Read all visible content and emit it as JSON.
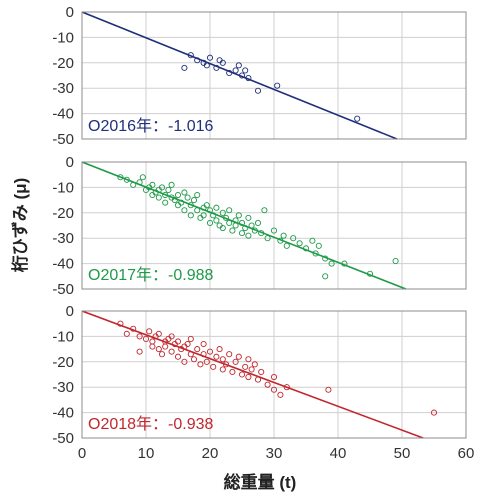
{
  "chart_data": {
    "type": "scatter",
    "xlabel": "総重量 (t)",
    "ylabel": "桁ひずみ (μ)",
    "xlim": [
      0,
      60
    ],
    "ylim": [
      -50,
      0
    ],
    "x_ticks": [
      "0",
      "10",
      "20",
      "30",
      "40",
      "50",
      "60"
    ],
    "y_ticks": [
      "0",
      "-10",
      "-20",
      "-30",
      "-40",
      "-50"
    ],
    "grid": true,
    "panels": [
      {
        "name": "2016",
        "label": "O2016年：-1.016",
        "color": "#1f2f7a",
        "slope": -1.016,
        "points": [
          [
            16,
            -22
          ],
          [
            17,
            -17
          ],
          [
            18,
            -19
          ],
          [
            19,
            -20
          ],
          [
            19.5,
            -21
          ],
          [
            20,
            -18
          ],
          [
            21,
            -22
          ],
          [
            21.5,
            -19
          ],
          [
            22,
            -20
          ],
          [
            23,
            -24
          ],
          [
            24,
            -23
          ],
          [
            24.5,
            -21
          ],
          [
            25,
            -25
          ],
          [
            25.5,
            -23
          ],
          [
            26,
            -26
          ],
          [
            27.5,
            -31
          ],
          [
            30.5,
            -29
          ],
          [
            43,
            -42
          ]
        ]
      },
      {
        "name": "2017",
        "label": "O2017年：-0.988",
        "color": "#1e9a48",
        "slope": -0.988,
        "points": [
          [
            6,
            -6
          ],
          [
            7,
            -7
          ],
          [
            8,
            -9
          ],
          [
            9,
            -8
          ],
          [
            9.5,
            -6
          ],
          [
            10,
            -11
          ],
          [
            10.5,
            -10
          ],
          [
            11,
            -13
          ],
          [
            11,
            -9
          ],
          [
            11.5,
            -12
          ],
          [
            12,
            -11
          ],
          [
            12,
            -14
          ],
          [
            12.5,
            -10
          ],
          [
            13,
            -13
          ],
          [
            13,
            -16
          ],
          [
            13.5,
            -11
          ],
          [
            14,
            -14
          ],
          [
            14,
            -9
          ],
          [
            14.5,
            -15
          ],
          [
            15,
            -13
          ],
          [
            15,
            -17
          ],
          [
            15.5,
            -16
          ],
          [
            16,
            -12
          ],
          [
            16,
            -19
          ],
          [
            16.5,
            -14
          ],
          [
            17,
            -17
          ],
          [
            17,
            -21
          ],
          [
            17.5,
            -15
          ],
          [
            18,
            -19
          ],
          [
            18,
            -13
          ],
          [
            18.5,
            -22
          ],
          [
            19,
            -18
          ],
          [
            19,
            -21
          ],
          [
            19.5,
            -17
          ],
          [
            20,
            -24
          ],
          [
            20,
            -19
          ],
          [
            20.5,
            -21
          ],
          [
            21,
            -18
          ],
          [
            21,
            -23
          ],
          [
            21.5,
            -25
          ],
          [
            22,
            -20
          ],
          [
            22,
            -26
          ],
          [
            22.5,
            -22
          ],
          [
            23,
            -24
          ],
          [
            23,
            -19
          ],
          [
            23.5,
            -27
          ],
          [
            24,
            -23
          ],
          [
            24,
            -25
          ],
          [
            24.5,
            -21
          ],
          [
            25,
            -28
          ],
          [
            25,
            -24
          ],
          [
            25.5,
            -26
          ],
          [
            26,
            -22
          ],
          [
            26,
            -29
          ],
          [
            26.5,
            -25
          ],
          [
            27,
            -27
          ],
          [
            27.5,
            -24
          ],
          [
            28,
            -28
          ],
          [
            28.5,
            -19
          ],
          [
            29,
            -30
          ],
          [
            30,
            -27
          ],
          [
            31,
            -31
          ],
          [
            31.5,
            -29
          ],
          [
            32,
            -33
          ],
          [
            33,
            -30
          ],
          [
            34,
            -32
          ],
          [
            35,
            -34
          ],
          [
            36,
            -31
          ],
          [
            36.5,
            -36
          ],
          [
            37,
            -33
          ],
          [
            38,
            -45
          ],
          [
            38,
            -38
          ],
          [
            39,
            -40
          ],
          [
            41,
            -40
          ],
          [
            45,
            -44
          ],
          [
            49,
            -39
          ]
        ]
      },
      {
        "name": "2018",
        "label": "O2018年：-0.938",
        "color": "#c1272d",
        "slope": -0.938,
        "points": [
          [
            6,
            -5
          ],
          [
            7,
            -9
          ],
          [
            8,
            -7
          ],
          [
            9,
            -10
          ],
          [
            9,
            -16
          ],
          [
            10,
            -11
          ],
          [
            10.5,
            -8
          ],
          [
            11,
            -14
          ],
          [
            11,
            -12
          ],
          [
            11.5,
            -10
          ],
          [
            12,
            -15
          ],
          [
            12,
            -9
          ],
          [
            12.5,
            -17
          ],
          [
            13,
            -12
          ],
          [
            13,
            -14
          ],
          [
            13.5,
            -11
          ],
          [
            14,
            -16
          ],
          [
            14,
            -10
          ],
          [
            14.5,
            -13
          ],
          [
            15,
            -18
          ],
          [
            15,
            -12
          ],
          [
            15.5,
            -15
          ],
          [
            16,
            -14
          ],
          [
            16,
            -20
          ],
          [
            16.5,
            -13
          ],
          [
            17,
            -17
          ],
          [
            17,
            -11
          ],
          [
            17.5,
            -19
          ],
          [
            18,
            -15
          ],
          [
            18.5,
            -21
          ],
          [
            19,
            -17
          ],
          [
            19,
            -13
          ],
          [
            19.5,
            -20
          ],
          [
            20,
            -16
          ],
          [
            20.5,
            -22
          ],
          [
            21,
            -18
          ],
          [
            21.5,
            -15
          ],
          [
            22,
            -23
          ],
          [
            22,
            -19
          ],
          [
            22.5,
            -21
          ],
          [
            23,
            -17
          ],
          [
            23.5,
            -24
          ],
          [
            24,
            -20
          ],
          [
            24.5,
            -18
          ],
          [
            25,
            -25
          ],
          [
            25.5,
            -22
          ],
          [
            26,
            -19
          ],
          [
            26,
            -26
          ],
          [
            26.5,
            -23
          ],
          [
            27,
            -21
          ],
          [
            27.5,
            -27
          ],
          [
            28,
            -24
          ],
          [
            29,
            -29
          ],
          [
            30,
            -31
          ],
          [
            30,
            -26
          ],
          [
            31,
            -33
          ],
          [
            32,
            -30
          ],
          [
            38.5,
            -31
          ],
          [
            55,
            -40
          ]
        ]
      }
    ]
  }
}
